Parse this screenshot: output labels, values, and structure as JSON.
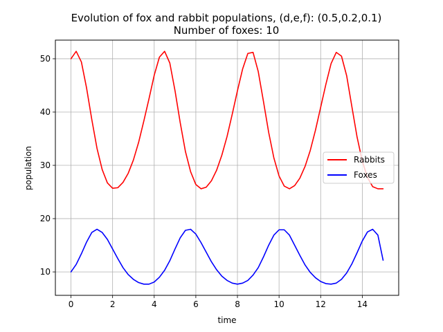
{
  "chart_data": {
    "type": "line",
    "title": "Evolution of fox and rabbit populations, (d,e,f): (0.5,0.2,0.1)",
    "subtitle": "Number of foxes: 10",
    "xlabel": "time",
    "ylabel": "population",
    "xlim": [
      -0.75,
      15.75
    ],
    "ylim": [
      5.6,
      53.5
    ],
    "xticks": [
      0,
      2,
      4,
      6,
      8,
      10,
      12,
      14
    ],
    "yticks": [
      10,
      20,
      30,
      40,
      50
    ],
    "grid": true,
    "legend_position": "center-right",
    "x": [
      0,
      0.25,
      0.5,
      0.75,
      1,
      1.25,
      1.5,
      1.75,
      2,
      2.25,
      2.5,
      2.75,
      3,
      3.25,
      3.5,
      3.75,
      4,
      4.25,
      4.5,
      4.75,
      5,
      5.25,
      5.5,
      5.75,
      6,
      6.25,
      6.5,
      6.75,
      7,
      7.25,
      7.5,
      7.75,
      8,
      8.25,
      8.5,
      8.75,
      9,
      9.25,
      9.5,
      9.75,
      10,
      10.25,
      10.5,
      10.75,
      11,
      11.25,
      11.5,
      11.75,
      12,
      12.25,
      12.5,
      12.75,
      13,
      13.25,
      13.5,
      13.75,
      14,
      14.25,
      14.5,
      14.75,
      15
    ],
    "series": [
      {
        "name": "Rabbits",
        "color": "#ff0000",
        "values": [
          50.0,
          51.4,
          49.4,
          44.5,
          38.6,
          33.2,
          29.2,
          26.7,
          25.7,
          25.8,
          26.8,
          28.5,
          31.0,
          34.3,
          38.3,
          42.5,
          46.9,
          50.3,
          51.4,
          49.2,
          44.0,
          38.0,
          32.6,
          28.8,
          26.4,
          25.6,
          25.9,
          27.1,
          29.1,
          31.9,
          35.4,
          39.6,
          44.0,
          48.1,
          51.0,
          51.2,
          47.6,
          42.0,
          36.2,
          31.4,
          28.0,
          26.1,
          25.6,
          26.2,
          27.6,
          29.8,
          32.8,
          36.6,
          40.9,
          45.2,
          49.1,
          51.2,
          50.5,
          46.8,
          41.0,
          35.3,
          30.8,
          27.7,
          26.0,
          25.6,
          25.6
        ]
      },
      {
        "name": "Foxes",
        "color": "#0000ff",
        "values": [
          10.0,
          11.4,
          13.4,
          15.6,
          17.4,
          18.0,
          17.4,
          16.1,
          14.3,
          12.5,
          10.8,
          9.5,
          8.6,
          8.0,
          7.7,
          7.7,
          8.1,
          9.0,
          10.3,
          12.1,
          14.3,
          16.4,
          17.8,
          18.0,
          17.1,
          15.5,
          13.7,
          11.9,
          10.4,
          9.2,
          8.4,
          7.9,
          7.7,
          7.9,
          8.4,
          9.4,
          10.8,
          12.8,
          15.0,
          16.9,
          17.9,
          17.9,
          16.9,
          15.0,
          13.1,
          11.3,
          9.9,
          8.9,
          8.2,
          7.8,
          7.7,
          7.9,
          8.6,
          9.8,
          11.5,
          13.6,
          15.8,
          17.5,
          18.0,
          16.9,
          12.2
        ]
      }
    ]
  }
}
